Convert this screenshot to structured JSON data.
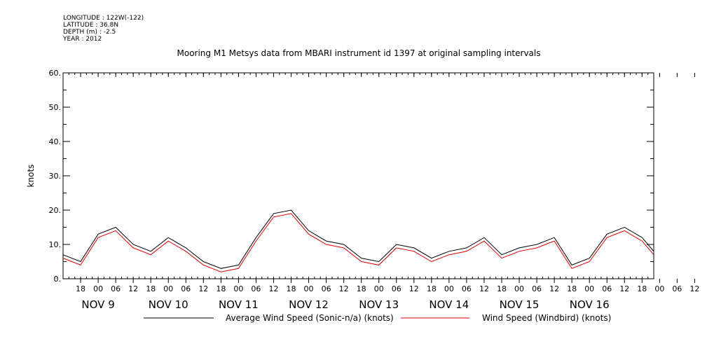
{
  "header": {
    "longitude": "LONGITUDE : 122W(-122)",
    "latitude": "LATITUDE : 36.8N",
    "depth": "DEPTH (m) : -2.5",
    "year": "YEAR : 2012"
  },
  "chart_data": {
    "type": "line",
    "title": "Mooring M1 Metsys data from MBARI instrument id 1397 at original sampling intervals",
    "xlabel": "",
    "ylabel": "knots",
    "ylim": [
      0,
      60
    ],
    "yticks": [
      "0.",
      "10.",
      "20.",
      "30.",
      "40.",
      "50.",
      "60."
    ],
    "xlim": [
      "2012-11-08T12:00",
      "2012-11-16T22:00"
    ],
    "hour_ticks": [
      "18",
      "00",
      "06",
      "12",
      "18",
      "00",
      "06",
      "12",
      "18",
      "00",
      "06",
      "12",
      "18",
      "00",
      "06",
      "12",
      "18",
      "00",
      "06",
      "12",
      "18",
      "00",
      "06",
      "12",
      "18",
      "00",
      "06",
      "12",
      "18",
      "00",
      "06",
      "12",
      "18",
      "00",
      "06",
      "12"
    ],
    "day_labels": [
      "NOV  9",
      "NOV 10",
      "NOV 11",
      "NOV 12",
      "NOV 13",
      "NOV 14",
      "NOV 15",
      "NOV 16"
    ],
    "grid": false,
    "legend_position": "bottom",
    "series": [
      {
        "name": "Average Wind Speed (Sonic-n/a) (knots)",
        "color": "#000000",
        "x": [
          "2012-11-08T12:00",
          "2012-11-08T18:00",
          "2012-11-09T00:00",
          "2012-11-09T06:00",
          "2012-11-09T12:00",
          "2012-11-09T18:00",
          "2012-11-10T00:00",
          "2012-11-10T06:00",
          "2012-11-10T12:00",
          "2012-11-10T18:00",
          "2012-11-11T00:00",
          "2012-11-11T06:00",
          "2012-11-11T12:00",
          "2012-11-11T18:00",
          "2012-11-12T00:00",
          "2012-11-12T06:00",
          "2012-11-12T12:00",
          "2012-11-12T18:00",
          "2012-11-13T00:00",
          "2012-11-13T06:00",
          "2012-11-13T12:00",
          "2012-11-13T18:00",
          "2012-11-14T00:00",
          "2012-11-14T06:00",
          "2012-11-14T12:00",
          "2012-11-14T18:00",
          "2012-11-15T00:00",
          "2012-11-15T06:00",
          "2012-11-15T12:00",
          "2012-11-15T18:00",
          "2012-11-16T00:00",
          "2012-11-16T06:00",
          "2012-11-16T12:00",
          "2012-11-16T18:00",
          "2012-11-16T22:00"
        ],
        "y": [
          7,
          5,
          13,
          15,
          10,
          8,
          12,
          9,
          5,
          3,
          4,
          12,
          19,
          20,
          14,
          11,
          10,
          6,
          5,
          10,
          9,
          6,
          8,
          9,
          12,
          7,
          9,
          10,
          12,
          4,
          6,
          13,
          15,
          12,
          8
        ]
      },
      {
        "name": "Wind Speed (Windbird) (knots)",
        "color": "#dd0000",
        "x": [
          "2012-11-08T12:00",
          "2012-11-08T18:00",
          "2012-11-09T00:00",
          "2012-11-09T06:00",
          "2012-11-09T12:00",
          "2012-11-09T18:00",
          "2012-11-10T00:00",
          "2012-11-10T06:00",
          "2012-11-10T12:00",
          "2012-11-10T18:00",
          "2012-11-11T00:00",
          "2012-11-11T06:00",
          "2012-11-11T12:00",
          "2012-11-11T18:00",
          "2012-11-12T00:00",
          "2012-11-12T06:00",
          "2012-11-12T12:00",
          "2012-11-12T18:00",
          "2012-11-13T00:00",
          "2012-11-13T06:00",
          "2012-11-13T12:00",
          "2012-11-13T18:00",
          "2012-11-14T00:00",
          "2012-11-14T06:00",
          "2012-11-14T12:00",
          "2012-11-14T18:00",
          "2012-11-15T00:00",
          "2012-11-15T06:00",
          "2012-11-15T12:00",
          "2012-11-15T18:00",
          "2012-11-16T00:00",
          "2012-11-16T06:00",
          "2012-11-16T12:00",
          "2012-11-16T18:00",
          "2012-11-16T22:00"
        ],
        "y": [
          6,
          4,
          12,
          14,
          9,
          7,
          11,
          8,
          4,
          2,
          3,
          11,
          18,
          19,
          13,
          10,
          9,
          5,
          4,
          9,
          8,
          5,
          7,
          8,
          11,
          6,
          8,
          9,
          11,
          3,
          5,
          12,
          14,
          11,
          7
        ]
      }
    ]
  }
}
